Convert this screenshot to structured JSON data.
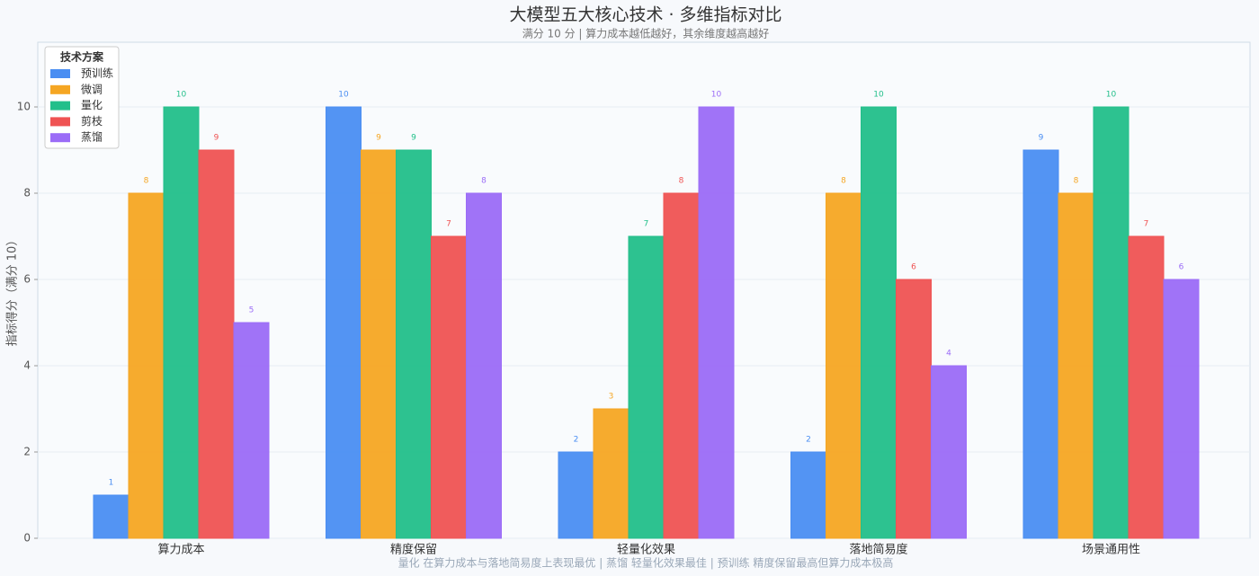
{
  "chart_data": {
    "type": "bar",
    "title": "大模型五大核心技术 · 多维指标对比",
    "subtitle": "满分 10 分 | 算力成本越低越好，其余维度越高越好",
    "y_label": "指标得分（满分 10）",
    "annotation": "量化 在算力成本与落地简易度上表现最优 | 蒸馏 轻量化效果最佳 | 预训练 精度保留最高但算力成本极高",
    "legend_title": "技术方案",
    "legend": "upper left",
    "grid": true,
    "categories": [
      "算力成本",
      "精度保留",
      "轻量化效果",
      "落地简易度",
      "场景通用性"
    ],
    "series": [
      {
        "name": "预训练",
        "color": "#4a8ef2",
        "values": [
          1,
          10,
          2,
          2,
          9
        ]
      },
      {
        "name": "微调",
        "color": "#f5a623",
        "values": [
          8,
          9,
          3,
          8,
          8
        ]
      },
      {
        "name": "量化",
        "color": "#22bf8a",
        "values": [
          10,
          9,
          7,
          10,
          10
        ]
      },
      {
        "name": "剪枝",
        "color": "#ef5353",
        "values": [
          9,
          7,
          8,
          6,
          7
        ]
      },
      {
        "name": "蒸馏",
        "color": "#9b6cf7",
        "values": [
          5,
          8,
          10,
          4,
          6
        ]
      }
    ],
    "ylim": [
      0,
      11.5
    ],
    "yticks": [
      0,
      2,
      4,
      6,
      8,
      10
    ]
  }
}
